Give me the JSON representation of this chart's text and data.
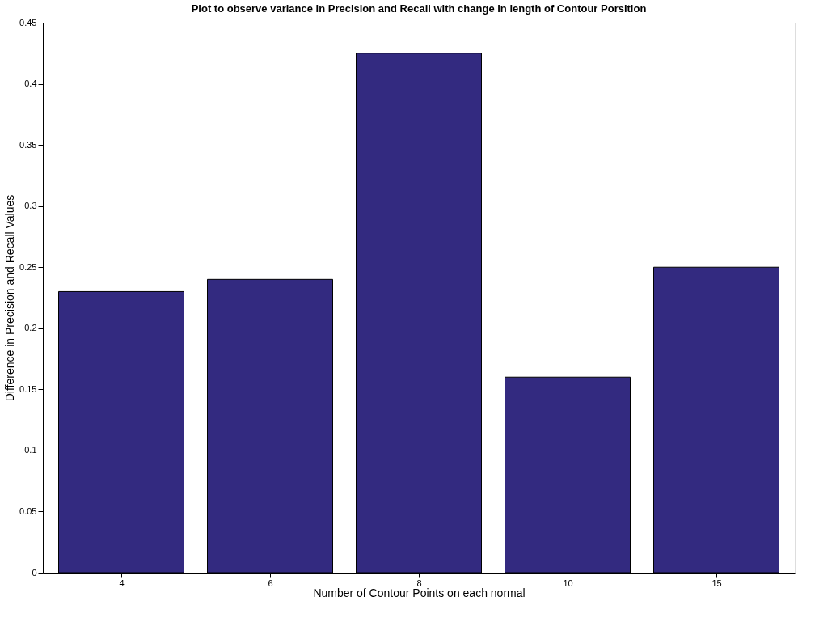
{
  "chart_data": {
    "type": "bar",
    "title": "Plot to observe variance in Precision and Recall with change in length of Contour Porsition",
    "xlabel": "Number of Contour Points on each normal",
    "ylabel": "Difference in Precision and Recall Values",
    "categories": [
      "4",
      "6",
      "8",
      "10",
      "15"
    ],
    "values": [
      0.23,
      0.24,
      0.425,
      0.16,
      0.25
    ],
    "color": "#332a80",
    "ylim": [
      0,
      0.45
    ],
    "yticks": [
      0,
      0.05,
      0.1,
      0.15,
      0.2,
      0.25,
      0.3,
      0.35,
      0.4,
      0.45
    ],
    "grid": false
  }
}
